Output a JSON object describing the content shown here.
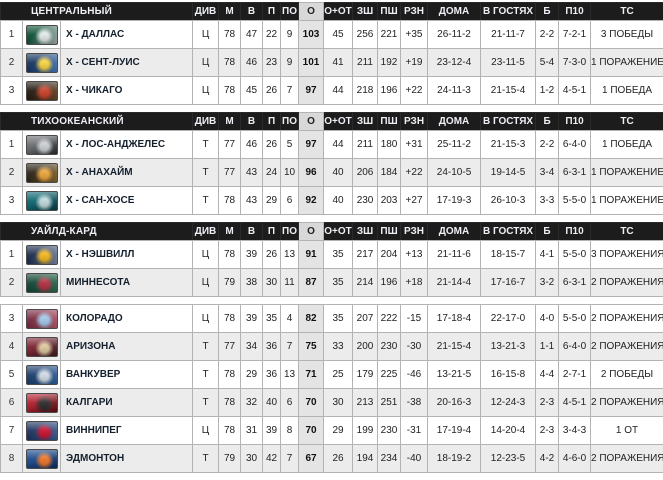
{
  "theme": {
    "header_bg": "#1c1c1c",
    "header_text": "#eef0f6",
    "o_head_bg": "#d8d8d8",
    "o_col_bg": "#e4e4e4",
    "row_alt_bg": "#ececec",
    "border": "#b3b3b3",
    "team_text": "#15202e",
    "text": "#222222",
    "page_bg": "#ffffff"
  },
  "columns": [
    {
      "key": "division",
      "label": "ДИВ"
    },
    {
      "key": "games",
      "label": "М"
    },
    {
      "key": "wins",
      "label": "В"
    },
    {
      "key": "losses",
      "label": "П"
    },
    {
      "key": "ot-losses",
      "label": "ПО"
    },
    {
      "key": "points",
      "label": "О"
    },
    {
      "key": "wins-plus-ot",
      "label": "О+ОТ"
    },
    {
      "key": "goals-for",
      "label": "ЗШ"
    },
    {
      "key": "goals-against",
      "label": "ПШ"
    },
    {
      "key": "goal-diff",
      "label": "РЗН"
    },
    {
      "key": "home-record",
      "label": "ДОМА"
    },
    {
      "key": "away-record",
      "label": "В ГОСТЯХ"
    },
    {
      "key": "shootout",
      "label": "Б"
    },
    {
      "key": "last-10",
      "label": "П10"
    },
    {
      "key": "streak",
      "label": "ТС"
    }
  ],
  "sections": [
    {
      "id": "central",
      "title": "ЦЕНТРАЛЬНЫЙ",
      "show_header": true,
      "rows": [
        {
          "rank": "1",
          "team": "Х - ДАЛЛАС",
          "logo": {
            "name": "dallas-stars-logo",
            "c1": "#0c5134",
            "c2": "#a7b1b3",
            "accent": "#dfe6e6"
          },
          "stats": [
            "Ц",
            "78",
            "47",
            "22",
            "9",
            "103",
            "45",
            "256",
            "221",
            "+35",
            "26-11-2",
            "21-11-7",
            "2-2",
            "7-2-1",
            "3 ПОБЕДЫ"
          ]
        },
        {
          "rank": "2",
          "team": "Х - СЕНТ-ЛУИС",
          "logo": {
            "name": "st-louis-blues-logo",
            "c1": "#16355f",
            "c2": "#4a7bc0",
            "accent": "#f3d13f"
          },
          "stats": [
            "Ц",
            "78",
            "46",
            "23",
            "9",
            "101",
            "41",
            "211",
            "192",
            "+19",
            "23-12-4",
            "23-11-5",
            "5-4",
            "7-3-0",
            "1 ПОРАЖЕНИЕ"
          ]
        },
        {
          "rank": "3",
          "team": "Х - ЧИКАГО",
          "logo": {
            "name": "chicago-blackhawks-logo",
            "c1": "#241a10",
            "c2": "#6b4a2a",
            "accent": "#c8402a"
          },
          "stats": [
            "Ц",
            "78",
            "45",
            "26",
            "7",
            "97",
            "44",
            "218",
            "196",
            "+22",
            "24-11-3",
            "21-15-4",
            "1-2",
            "4-5-1",
            "1 ПОБЕДА"
          ]
        }
      ]
    },
    {
      "id": "pacific",
      "title": "ТИХООКЕАНСКИЙ",
      "show_header": true,
      "rows": [
        {
          "rank": "1",
          "team": "Х - ЛОС-АНДЖЕЛЕС",
          "logo": {
            "name": "la-kings-logo",
            "c1": "#6a6d70",
            "c2": "#2a2c2e",
            "accent": "#c9cdd1"
          },
          "stats": [
            "Т",
            "77",
            "46",
            "26",
            "5",
            "97",
            "44",
            "211",
            "180",
            "+31",
            "25-11-2",
            "21-15-3",
            "2-2",
            "6-4-0",
            "1 ПОБЕДА"
          ]
        },
        {
          "rank": "2",
          "team": "Х - АНАХАЙМ",
          "logo": {
            "name": "anaheim-ducks-logo",
            "c1": "#2e2416",
            "c2": "#8a6a30",
            "accent": "#e8a33a"
          },
          "stats": [
            "Т",
            "77",
            "43",
            "24",
            "10",
            "96",
            "40",
            "206",
            "184",
            "+22",
            "24-10-5",
            "19-14-5",
            "3-4",
            "6-3-1",
            "1 ПОРАЖЕНИЕ"
          ]
        },
        {
          "rank": "3",
          "team": "Х - САН-ХОСЕ",
          "logo": {
            "name": "san-jose-sharks-logo",
            "c1": "#0e6770",
            "c2": "#0b3e47",
            "accent": "#bcd7d9"
          },
          "stats": [
            "Т",
            "78",
            "43",
            "29",
            "6",
            "92",
            "40",
            "230",
            "203",
            "+27",
            "17-19-3",
            "26-10-3",
            "3-3",
            "5-5-0",
            "1 ПОРАЖЕНИЕ"
          ]
        }
      ]
    },
    {
      "id": "wildcard-top",
      "title": "УАЙЛД-КАРД",
      "show_header": true,
      "rows": [
        {
          "rank": "1",
          "team": "Х - НЭШВИЛЛ",
          "logo": {
            "name": "nashville-predators-logo",
            "c1": "#1b2c4f",
            "c2": "#7c8aa0",
            "accent": "#f0b41e"
          },
          "stats": [
            "Ц",
            "78",
            "39",
            "26",
            "13",
            "91",
            "35",
            "217",
            "204",
            "+13",
            "21-11-6",
            "18-15-7",
            "4-1",
            "5-5-0",
            "3 ПОРАЖЕНИЯ"
          ]
        },
        {
          "rank": "2",
          "team": "МИННЕСОТА",
          "logo": {
            "name": "minnesota-wild-logo",
            "c1": "#114734",
            "c2": "#2d6b4f",
            "accent": "#b03040"
          },
          "stats": [
            "Ц",
            "79",
            "38",
            "30",
            "11",
            "87",
            "35",
            "214",
            "196",
            "+18",
            "21-14-4",
            "17-16-7",
            "3-2",
            "6-3-1",
            "2 ПОРАЖЕНИЯ"
          ]
        }
      ]
    },
    {
      "id": "wildcard-bottom",
      "title": "",
      "show_header": false,
      "rows": [
        {
          "rank": "3",
          "team": "КОЛОРАДО",
          "logo": {
            "name": "colorado-avalanche-logo",
            "c1": "#7a2b42",
            "c2": "#b45a6e",
            "accent": "#9fc7e8"
          },
          "stats": [
            "Ц",
            "78",
            "39",
            "35",
            "4",
            "82",
            "35",
            "207",
            "222",
            "-15",
            "17-18-4",
            "22-17-0",
            "4-0",
            "5-5-0",
            "2 ПОРАЖЕНИЯ"
          ]
        },
        {
          "rank": "4",
          "team": "АРИЗОНА",
          "logo": {
            "name": "arizona-coyotes-logo",
            "c1": "#7c2230",
            "c2": "#3a1c20",
            "accent": "#d9c49a"
          },
          "stats": [
            "Т",
            "77",
            "34",
            "36",
            "7",
            "75",
            "33",
            "200",
            "230",
            "-30",
            "21-15-4",
            "13-21-3",
            "1-1",
            "6-4-0",
            "2 ПОРАЖЕНИЯ"
          ]
        },
        {
          "rank": "5",
          "team": "ВАНКУВЕР",
          "logo": {
            "name": "vancouver-canucks-logo",
            "c1": "#1b3d6d",
            "c2": "#2f639e",
            "accent": "#cfd8e2"
          },
          "stats": [
            "Т",
            "78",
            "29",
            "36",
            "13",
            "71",
            "25",
            "179",
            "225",
            "-46",
            "13-21-5",
            "16-15-8",
            "4-4",
            "2-7-1",
            "2 ПОБЕДЫ"
          ]
        },
        {
          "rank": "6",
          "team": "КАЛГАРИ",
          "logo": {
            "name": "calgary-flames-logo",
            "c1": "#b01f2e",
            "c2": "#5c1015",
            "accent": "#2b2b2b"
          },
          "stats": [
            "Т",
            "78",
            "32",
            "40",
            "6",
            "70",
            "30",
            "213",
            "251",
            "-38",
            "20-16-3",
            "12-24-3",
            "2-3",
            "4-5-1",
            "2 ПОРАЖЕНИЯ"
          ]
        },
        {
          "rank": "7",
          "team": "ВИННИПЕГ",
          "logo": {
            "name": "winnipeg-jets-logo",
            "c1": "#1d3461",
            "c2": "#3c5e93",
            "accent": "#c8102e"
          },
          "stats": [
            "Ц",
            "78",
            "31",
            "39",
            "8",
            "70",
            "29",
            "199",
            "230",
            "-31",
            "17-19-4",
            "14-20-4",
            "2-3",
            "3-4-3",
            "1 ОТ"
          ]
        },
        {
          "rank": "8",
          "team": "ЭДМОНТОН",
          "logo": {
            "name": "edmonton-oilers-logo",
            "c1": "#1a4a8c",
            "c2": "#0e2f5e",
            "accent": "#e8732a"
          },
          "stats": [
            "Т",
            "79",
            "30",
            "42",
            "7",
            "67",
            "26",
            "194",
            "234",
            "-40",
            "18-19-2",
            "12-23-5",
            "4-2",
            "4-6-0",
            "2 ПОРАЖЕНИЯ"
          ]
        }
      ]
    }
  ]
}
